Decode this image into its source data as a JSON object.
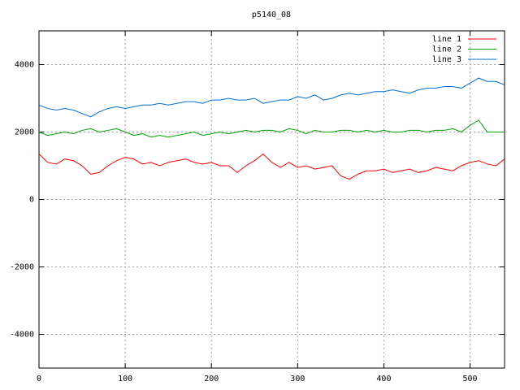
{
  "chart_data": {
    "type": "line",
    "title": "p5140_08",
    "x": [
      0,
      10,
      20,
      30,
      40,
      50,
      60,
      70,
      80,
      90,
      100,
      110,
      120,
      130,
      140,
      150,
      160,
      170,
      180,
      190,
      200,
      210,
      220,
      230,
      240,
      250,
      260,
      270,
      280,
      290,
      300,
      310,
      320,
      330,
      340,
      350,
      360,
      370,
      380,
      390,
      400,
      410,
      420,
      430,
      440,
      450,
      460,
      470,
      480,
      490,
      500,
      510,
      520,
      530,
      540
    ],
    "series": [
      {
        "name": "line 1",
        "color": "#ff0000",
        "values": [
          1350,
          1100,
          1050,
          1200,
          1150,
          1000,
          750,
          800,
          1000,
          1150,
          1250,
          1200,
          1050,
          1100,
          1000,
          1100,
          1150,
          1200,
          1100,
          1050,
          1100,
          1000,
          1000,
          800,
          1000,
          1150,
          1350,
          1100,
          950,
          1100,
          950,
          1000,
          900,
          950,
          1000,
          700,
          600,
          750,
          850,
          850,
          900,
          800,
          850,
          900,
          800,
          850,
          950,
          900,
          850,
          1000,
          1100,
          1150,
          1050,
          1000,
          1200
        ]
      },
      {
        "name": "line 2",
        "color": "#00a000",
        "values": [
          2000,
          1900,
          1950,
          2000,
          1950,
          2050,
          2100,
          2000,
          2050,
          2100,
          2000,
          1900,
          1950,
          1850,
          1900,
          1850,
          1900,
          1950,
          2000,
          1900,
          1950,
          2000,
          1950,
          2000,
          2050,
          2000,
          2050,
          2050,
          2000,
          2100,
          2050,
          1950,
          2050,
          2000,
          2000,
          2050,
          2050,
          2000,
          2050,
          2000,
          2050,
          2000,
          2000,
          2050,
          2050,
          2000,
          2050,
          2050,
          2100,
          2000,
          2200,
          2350,
          2000,
          2000,
          2000
        ]
      },
      {
        "name": "line 3",
        "color": "#0070d0",
        "values": [
          2800,
          2700,
          2650,
          2700,
          2650,
          2550,
          2450,
          2600,
          2700,
          2750,
          2700,
          2750,
          2800,
          2800,
          2850,
          2800,
          2850,
          2900,
          2900,
          2850,
          2950,
          2950,
          3000,
          2950,
          2950,
          3000,
          2850,
          2900,
          2950,
          2950,
          3050,
          3000,
          3100,
          2950,
          3000,
          3100,
          3150,
          3100,
          3150,
          3200,
          3200,
          3250,
          3200,
          3150,
          3250,
          3300,
          3300,
          3350,
          3350,
          3300,
          3450,
          3600,
          3500,
          3500,
          3400
        ]
      }
    ],
    "xlim": [
      0,
      540
    ],
    "ylim": [
      -5000,
      5000
    ],
    "xticks": [
      0,
      100,
      200,
      300,
      400,
      500
    ],
    "yticks": [
      -4000,
      -2000,
      0,
      2000,
      4000
    ],
    "grid": true,
    "legend": "top-right"
  }
}
